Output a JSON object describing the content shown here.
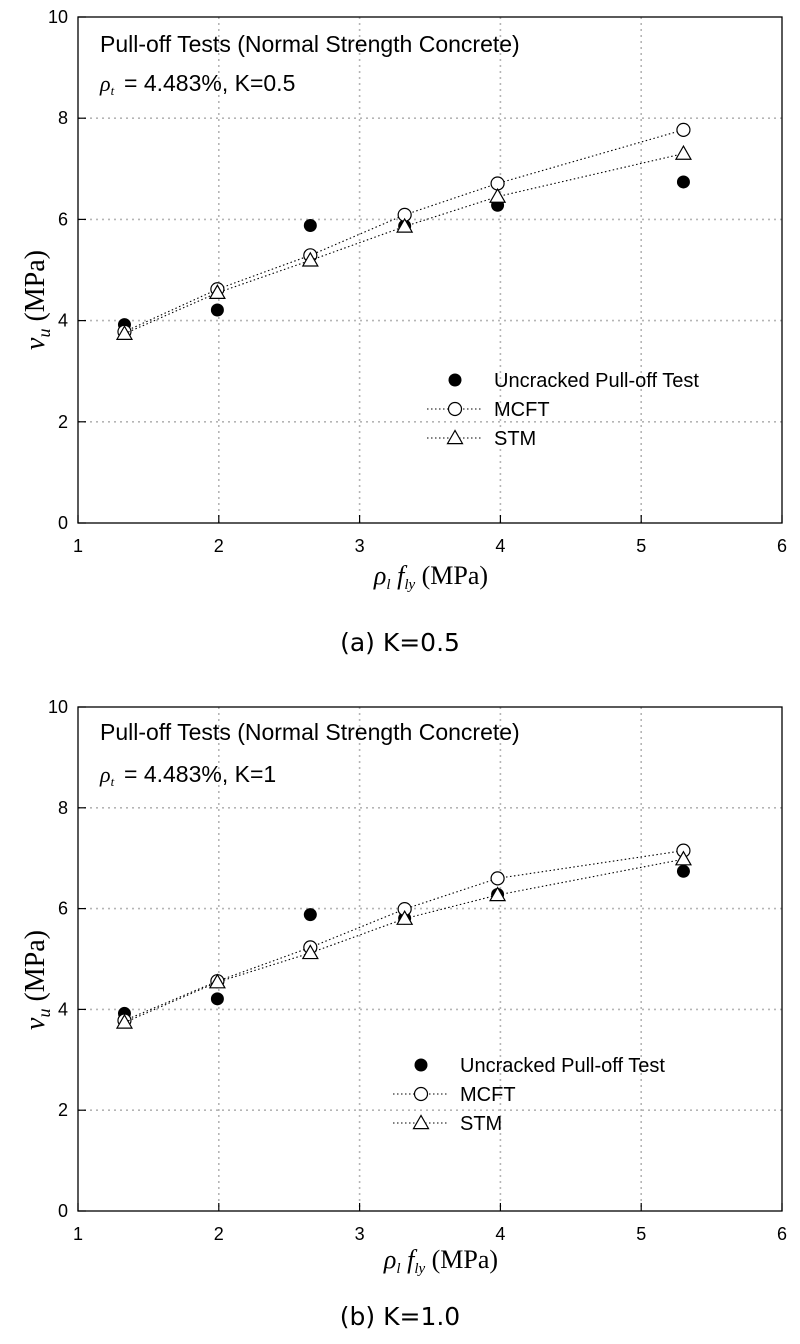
{
  "chart_data": [
    {
      "type": "scatter",
      "title": "Pull-off Tests (Normal Strength Concrete)",
      "subtitle_value": "= 4.483%, K=0.5",
      "xlabel_unit": "(MPa)",
      "ylabel_unit": "(MPa)",
      "xlim": [
        1,
        6
      ],
      "ylim": [
        0,
        10
      ],
      "xticks": [
        "1",
        "2",
        "3",
        "4",
        "5",
        "6"
      ],
      "yticks": [
        "0",
        "2",
        "4",
        "6",
        "8",
        "10"
      ],
      "grid": true,
      "legend_position": "lower-right",
      "caption": "(a) K=0.5",
      "series": [
        {
          "name": "Uncracked Pull-off Test",
          "marker": "filled-circle",
          "x": [
            1.33,
            1.99,
            2.65,
            3.32,
            3.98,
            5.3
          ],
          "y": [
            3.92,
            4.21,
            5.88,
            5.87,
            6.28,
            6.74
          ]
        },
        {
          "name": "MCFT",
          "marker": "open-circle",
          "line": "dotted",
          "x": [
            1.33,
            1.99,
            2.65,
            3.32,
            3.98,
            5.3
          ],
          "y": [
            3.78,
            4.62,
            5.29,
            6.09,
            6.71,
            7.77
          ]
        },
        {
          "name": "STM",
          "marker": "open-triangle",
          "line": "dotted",
          "x": [
            1.33,
            1.99,
            2.65,
            3.32,
            3.98,
            5.3
          ],
          "y": [
            3.74,
            4.55,
            5.19,
            5.86,
            6.45,
            7.3
          ]
        }
      ]
    },
    {
      "type": "scatter",
      "title": "Pull-off Tests (Normal Strength Concrete)",
      "subtitle_value": "= 4.483%, K=1",
      "xlabel_unit": "(MPa)",
      "ylabel_unit": "(MPa)",
      "xlim": [
        1,
        6
      ],
      "ylim": [
        0,
        10
      ],
      "xticks": [
        "1",
        "2",
        "3",
        "4",
        "5",
        "6"
      ],
      "yticks": [
        "0",
        "2",
        "4",
        "6",
        "8",
        "10"
      ],
      "grid": true,
      "legend_position": "lower-right",
      "caption": "(b) K=1.0",
      "series": [
        {
          "name": "Uncracked Pull-off Test",
          "marker": "filled-circle",
          "x": [
            1.33,
            1.99,
            2.65,
            3.32,
            3.98,
            5.3
          ],
          "y": [
            3.92,
            4.21,
            5.88,
            5.81,
            6.28,
            6.74
          ]
        },
        {
          "name": "MCFT",
          "marker": "open-circle",
          "line": "dotted",
          "x": [
            1.33,
            1.99,
            2.65,
            3.32,
            3.98,
            5.3
          ],
          "y": [
            3.78,
            4.56,
            5.23,
            5.99,
            6.6,
            7.15
          ]
        },
        {
          "name": "STM",
          "marker": "open-triangle",
          "line": "dotted",
          "x": [
            1.33,
            1.99,
            2.65,
            3.32,
            3.98,
            5.3
          ],
          "y": [
            3.74,
            4.54,
            5.12,
            5.8,
            6.27,
            6.98
          ]
        }
      ]
    }
  ]
}
